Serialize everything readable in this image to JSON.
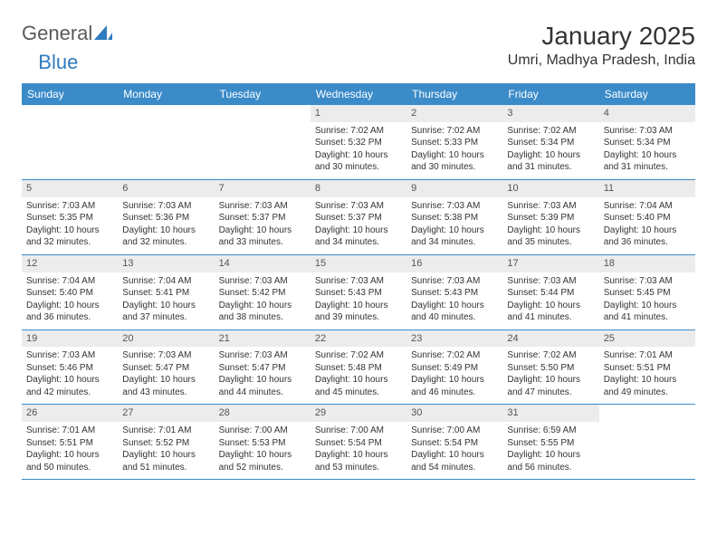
{
  "brand": {
    "part1": "General",
    "part2": "Blue"
  },
  "title": "January 2025",
  "location": "Umri, Madhya Pradesh, India",
  "colors": {
    "header_bg": "#3b8bc9",
    "header_text": "#ffffff",
    "daynum_bg": "#ececec",
    "border": "#3b8bc9",
    "text": "#333333",
    "brand_gray": "#5a5a5a",
    "brand_blue": "#2f7bbf",
    "page_bg": "#ffffff"
  },
  "day_names": [
    "Sunday",
    "Monday",
    "Tuesday",
    "Wednesday",
    "Thursday",
    "Friday",
    "Saturday"
  ],
  "weeks": [
    [
      {
        "n": "",
        "sr": "",
        "ss": "",
        "dl": ""
      },
      {
        "n": "",
        "sr": "",
        "ss": "",
        "dl": ""
      },
      {
        "n": "",
        "sr": "",
        "ss": "",
        "dl": ""
      },
      {
        "n": "1",
        "sr": "Sunrise: 7:02 AM",
        "ss": "Sunset: 5:32 PM",
        "dl": "Daylight: 10 hours and 30 minutes."
      },
      {
        "n": "2",
        "sr": "Sunrise: 7:02 AM",
        "ss": "Sunset: 5:33 PM",
        "dl": "Daylight: 10 hours and 30 minutes."
      },
      {
        "n": "3",
        "sr": "Sunrise: 7:02 AM",
        "ss": "Sunset: 5:34 PM",
        "dl": "Daylight: 10 hours and 31 minutes."
      },
      {
        "n": "4",
        "sr": "Sunrise: 7:03 AM",
        "ss": "Sunset: 5:34 PM",
        "dl": "Daylight: 10 hours and 31 minutes."
      }
    ],
    [
      {
        "n": "5",
        "sr": "Sunrise: 7:03 AM",
        "ss": "Sunset: 5:35 PM",
        "dl": "Daylight: 10 hours and 32 minutes."
      },
      {
        "n": "6",
        "sr": "Sunrise: 7:03 AM",
        "ss": "Sunset: 5:36 PM",
        "dl": "Daylight: 10 hours and 32 minutes."
      },
      {
        "n": "7",
        "sr": "Sunrise: 7:03 AM",
        "ss": "Sunset: 5:37 PM",
        "dl": "Daylight: 10 hours and 33 minutes."
      },
      {
        "n": "8",
        "sr": "Sunrise: 7:03 AM",
        "ss": "Sunset: 5:37 PM",
        "dl": "Daylight: 10 hours and 34 minutes."
      },
      {
        "n": "9",
        "sr": "Sunrise: 7:03 AM",
        "ss": "Sunset: 5:38 PM",
        "dl": "Daylight: 10 hours and 34 minutes."
      },
      {
        "n": "10",
        "sr": "Sunrise: 7:03 AM",
        "ss": "Sunset: 5:39 PM",
        "dl": "Daylight: 10 hours and 35 minutes."
      },
      {
        "n": "11",
        "sr": "Sunrise: 7:04 AM",
        "ss": "Sunset: 5:40 PM",
        "dl": "Daylight: 10 hours and 36 minutes."
      }
    ],
    [
      {
        "n": "12",
        "sr": "Sunrise: 7:04 AM",
        "ss": "Sunset: 5:40 PM",
        "dl": "Daylight: 10 hours and 36 minutes."
      },
      {
        "n": "13",
        "sr": "Sunrise: 7:04 AM",
        "ss": "Sunset: 5:41 PM",
        "dl": "Daylight: 10 hours and 37 minutes."
      },
      {
        "n": "14",
        "sr": "Sunrise: 7:03 AM",
        "ss": "Sunset: 5:42 PM",
        "dl": "Daylight: 10 hours and 38 minutes."
      },
      {
        "n": "15",
        "sr": "Sunrise: 7:03 AM",
        "ss": "Sunset: 5:43 PM",
        "dl": "Daylight: 10 hours and 39 minutes."
      },
      {
        "n": "16",
        "sr": "Sunrise: 7:03 AM",
        "ss": "Sunset: 5:43 PM",
        "dl": "Daylight: 10 hours and 40 minutes."
      },
      {
        "n": "17",
        "sr": "Sunrise: 7:03 AM",
        "ss": "Sunset: 5:44 PM",
        "dl": "Daylight: 10 hours and 41 minutes."
      },
      {
        "n": "18",
        "sr": "Sunrise: 7:03 AM",
        "ss": "Sunset: 5:45 PM",
        "dl": "Daylight: 10 hours and 41 minutes."
      }
    ],
    [
      {
        "n": "19",
        "sr": "Sunrise: 7:03 AM",
        "ss": "Sunset: 5:46 PM",
        "dl": "Daylight: 10 hours and 42 minutes."
      },
      {
        "n": "20",
        "sr": "Sunrise: 7:03 AM",
        "ss": "Sunset: 5:47 PM",
        "dl": "Daylight: 10 hours and 43 minutes."
      },
      {
        "n": "21",
        "sr": "Sunrise: 7:03 AM",
        "ss": "Sunset: 5:47 PM",
        "dl": "Daylight: 10 hours and 44 minutes."
      },
      {
        "n": "22",
        "sr": "Sunrise: 7:02 AM",
        "ss": "Sunset: 5:48 PM",
        "dl": "Daylight: 10 hours and 45 minutes."
      },
      {
        "n": "23",
        "sr": "Sunrise: 7:02 AM",
        "ss": "Sunset: 5:49 PM",
        "dl": "Daylight: 10 hours and 46 minutes."
      },
      {
        "n": "24",
        "sr": "Sunrise: 7:02 AM",
        "ss": "Sunset: 5:50 PM",
        "dl": "Daylight: 10 hours and 47 minutes."
      },
      {
        "n": "25",
        "sr": "Sunrise: 7:01 AM",
        "ss": "Sunset: 5:51 PM",
        "dl": "Daylight: 10 hours and 49 minutes."
      }
    ],
    [
      {
        "n": "26",
        "sr": "Sunrise: 7:01 AM",
        "ss": "Sunset: 5:51 PM",
        "dl": "Daylight: 10 hours and 50 minutes."
      },
      {
        "n": "27",
        "sr": "Sunrise: 7:01 AM",
        "ss": "Sunset: 5:52 PM",
        "dl": "Daylight: 10 hours and 51 minutes."
      },
      {
        "n": "28",
        "sr": "Sunrise: 7:00 AM",
        "ss": "Sunset: 5:53 PM",
        "dl": "Daylight: 10 hours and 52 minutes."
      },
      {
        "n": "29",
        "sr": "Sunrise: 7:00 AM",
        "ss": "Sunset: 5:54 PM",
        "dl": "Daylight: 10 hours and 53 minutes."
      },
      {
        "n": "30",
        "sr": "Sunrise: 7:00 AM",
        "ss": "Sunset: 5:54 PM",
        "dl": "Daylight: 10 hours and 54 minutes."
      },
      {
        "n": "31",
        "sr": "Sunrise: 6:59 AM",
        "ss": "Sunset: 5:55 PM",
        "dl": "Daylight: 10 hours and 56 minutes."
      },
      {
        "n": "",
        "sr": "",
        "ss": "",
        "dl": ""
      }
    ]
  ]
}
